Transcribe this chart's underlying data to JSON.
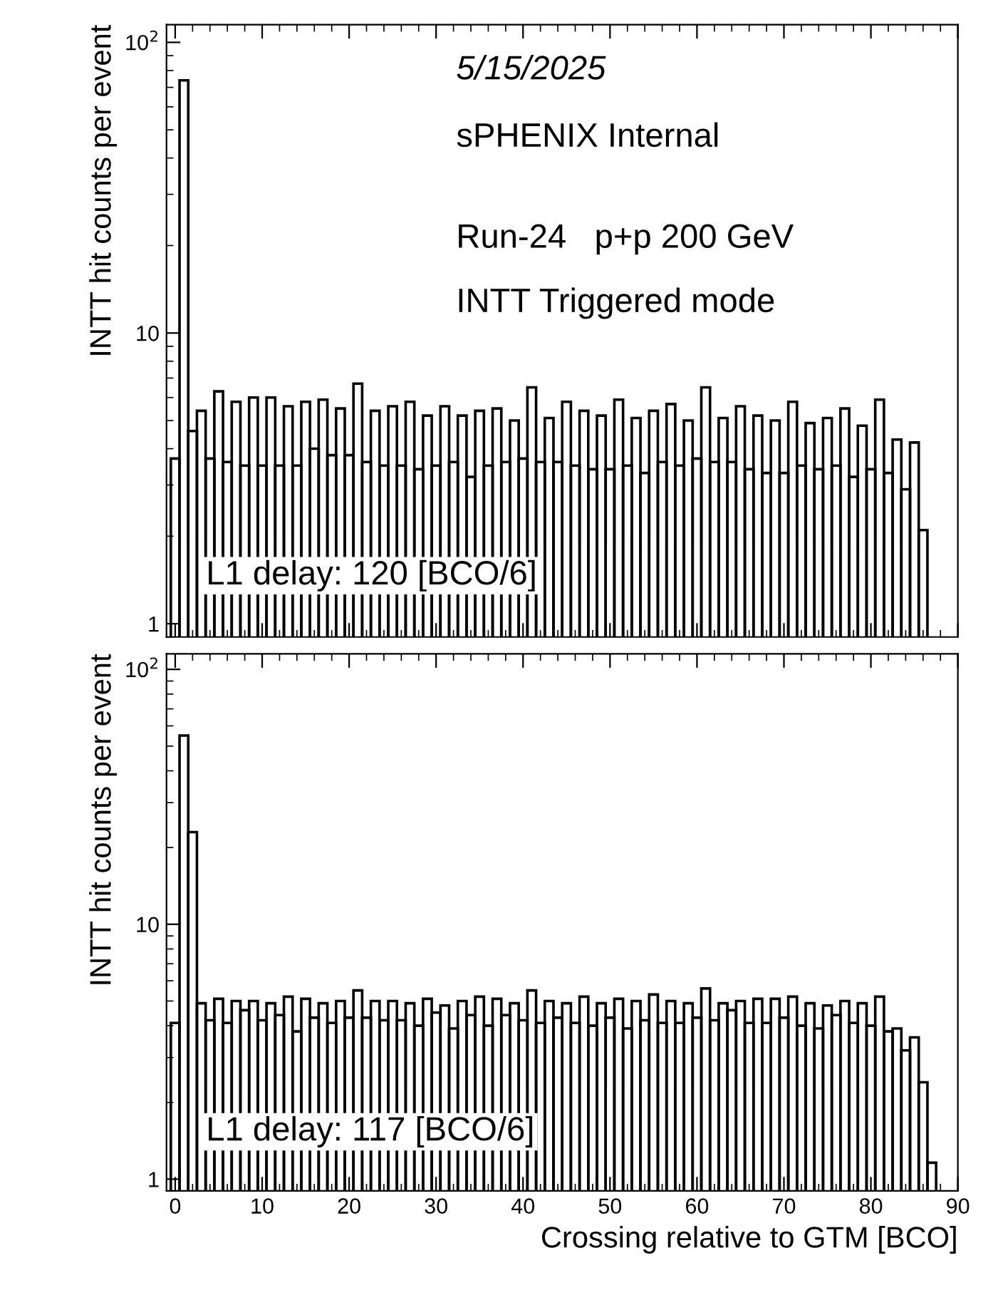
{
  "chart_data": [
    {
      "type": "histogram",
      "ylabel": "INTT hit counts per event",
      "log": "y",
      "grid": false,
      "tick_labels": "y",
      "xlim": [
        -1,
        90
      ],
      "xticks": [
        0,
        10,
        20,
        30,
        40,
        50,
        60,
        70,
        80,
        90
      ],
      "ylim": [
        0.9,
        115
      ],
      "yticks": [
        1,
        10,
        {
          "value": 100,
          "label": "10$^{2}$"
        }
      ],
      "color": "#000000",
      "bins": [
        -0.5,
        0.5,
        1.5,
        2.5,
        3.5,
        4.5,
        5.5,
        6.5,
        7.5,
        8.5,
        9.5,
        10.5,
        11.5,
        12.5,
        13.5,
        14.5,
        15.5,
        16.5,
        17.5,
        18.5,
        19.5,
        20.5,
        21.5,
        22.5,
        23.5,
        24.5,
        25.5,
        26.5,
        27.5,
        28.5,
        29.5,
        30.5,
        31.5,
        32.5,
        33.5,
        34.5,
        35.5,
        36.5,
        37.5,
        38.5,
        39.5,
        40.5,
        41.5,
        42.5,
        43.5,
        44.5,
        45.5,
        46.5,
        47.5,
        48.5,
        49.5,
        50.5,
        51.5,
        52.5,
        53.5,
        54.5,
        55.5,
        56.5,
        57.5,
        58.5,
        59.5,
        60.5,
        61.5,
        62.5,
        63.5,
        64.5,
        65.5,
        66.5,
        67.5,
        68.5,
        69.5,
        70.5,
        71.5,
        72.5,
        73.5,
        74.5,
        75.5,
        76.5,
        77.5,
        78.5,
        79.5,
        80.5,
        81.5,
        82.5,
        83.5,
        84.5,
        85.5,
        86.5
      ],
      "values": [
        3.7,
        74,
        4.6,
        5.4,
        3.7,
        6.3,
        3.6,
        5.8,
        3.5,
        6.0,
        3.5,
        6.0,
        3.5,
        5.6,
        3.5,
        5.8,
        4.0,
        5.9,
        3.8,
        5.5,
        3.8,
        6.7,
        3.6,
        5.4,
        3.5,
        5.6,
        3.5,
        5.8,
        3.4,
        5.2,
        3.5,
        5.6,
        3.6,
        5.2,
        3.2,
        5.4,
        3.5,
        5.5,
        3.6,
        5.0,
        3.7,
        6.5,
        3.6,
        5.1,
        3.6,
        5.8,
        3.5,
        5.4,
        3.4,
        5.2,
        3.4,
        5.9,
        3.5,
        5.1,
        3.3,
        5.4,
        3.6,
        5.7,
        3.5,
        5.0,
        3.7,
        6.5,
        3.6,
        5.1,
        3.6,
        5.6,
        3.4,
        5.2,
        3.3,
        5.0,
        3.3,
        5.8,
        3.5,
        4.9,
        3.4,
        5.1,
        3.5,
        5.5,
        3.2,
        4.8,
        3.4,
        5.9,
        3.3,
        4.3,
        2.9,
        4.2,
        2.1
      ],
      "annotations": [
        "5/15/2025",
        "sPHENIX Internal",
        "Run-24   p+p 200 GeV",
        "INTT Triggered mode",
        "L1 delay: 120 [BCO/6]"
      ]
    },
    {
      "type": "histogram",
      "ylabel": "INTT hit counts per event",
      "xlabel": "Crossing relative to GTM [BCO]",
      "log": "y",
      "grid": false,
      "xlim": [
        -1,
        90
      ],
      "xticks": [
        0,
        10,
        20,
        30,
        40,
        50,
        60,
        70,
        80,
        90
      ],
      "ylim": [
        0.9,
        115
      ],
      "yticks": [
        1,
        10,
        {
          "value": 100,
          "label": "10$^{2}$"
        }
      ],
      "color": "#000000",
      "bins": [
        -0.5,
        0.5,
        1.5,
        2.5,
        3.5,
        4.5,
        5.5,
        6.5,
        7.5,
        8.5,
        9.5,
        10.5,
        11.5,
        12.5,
        13.5,
        14.5,
        15.5,
        16.5,
        17.5,
        18.5,
        19.5,
        20.5,
        21.5,
        22.5,
        23.5,
        24.5,
        25.5,
        26.5,
        27.5,
        28.5,
        29.5,
        30.5,
        31.5,
        32.5,
        33.5,
        34.5,
        35.5,
        36.5,
        37.5,
        38.5,
        39.5,
        40.5,
        41.5,
        42.5,
        43.5,
        44.5,
        45.5,
        46.5,
        47.5,
        48.5,
        49.5,
        50.5,
        51.5,
        52.5,
        53.5,
        54.5,
        55.5,
        56.5,
        57.5,
        58.5,
        59.5,
        60.5,
        61.5,
        62.5,
        63.5,
        64.5,
        65.5,
        66.5,
        67.5,
        68.5,
        69.5,
        70.5,
        71.5,
        72.5,
        73.5,
        74.5,
        75.5,
        76.5,
        77.5,
        78.5,
        79.5,
        80.5,
        81.5,
        82.5,
        83.5,
        84.5,
        85.5,
        86.5,
        87.5
      ],
      "values": [
        4.1,
        55,
        23,
        4.9,
        4.2,
        5.1,
        4.1,
        5.0,
        4.6,
        5.0,
        4.2,
        4.9,
        4.4,
        5.2,
        3.8,
        5.1,
        4.3,
        4.9,
        4.1,
        5.0,
        4.3,
        5.5,
        4.3,
        5.0,
        4.2,
        5.0,
        4.2,
        4.9,
        4.0,
        5.1,
        4.5,
        4.8,
        3.9,
        5.0,
        4.4,
        5.2,
        4.0,
        5.1,
        4.4,
        4.9,
        4.2,
        5.5,
        4.1,
        5.0,
        4.3,
        4.9,
        4.1,
        5.2,
        4.0,
        4.9,
        4.3,
        5.1,
        3.9,
        5.0,
        4.2,
        5.3,
        4.1,
        5.0,
        4.1,
        4.9,
        4.3,
        5.6,
        4.2,
        4.9,
        4.6,
        5.0,
        4.1,
        5.1,
        4.1,
        5.1,
        4.3,
        5.2,
        4.0,
        4.9,
        3.9,
        4.8,
        4.4,
        5.0,
        4.1,
        4.9,
        4.0,
        5.2,
        3.8,
        3.9,
        3.2,
        3.6,
        2.4,
        1.16
      ],
      "annotations": [
        "L1 delay: 117 [BCO/6]"
      ]
    }
  ]
}
